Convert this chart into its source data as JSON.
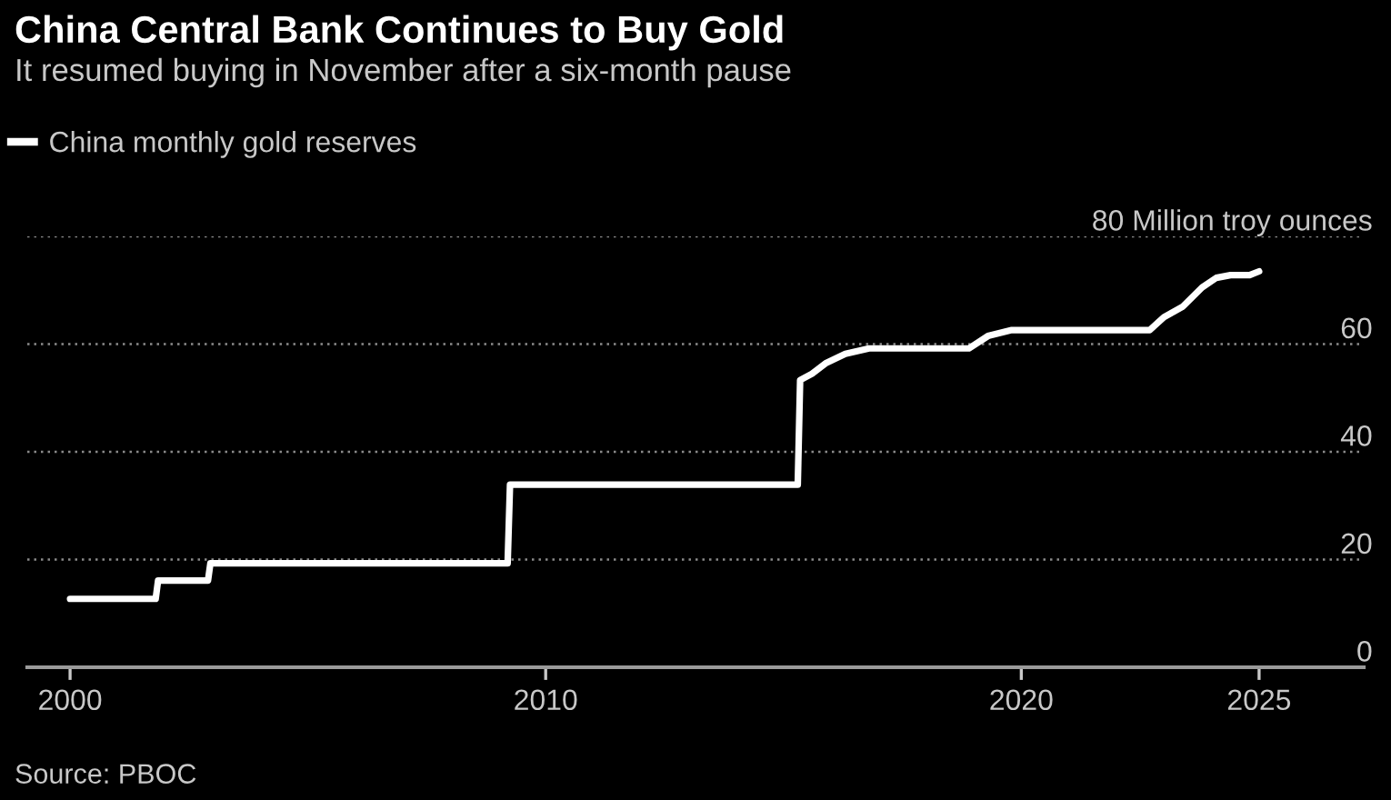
{
  "chart_data": {
    "type": "line",
    "title": "China Central Bank Continues to Buy Gold",
    "subtitle": "It resumed buying in November after a six-month pause",
    "series": [
      {
        "name": "China monthly gold reserves",
        "color": "#ffffff",
        "x": [
          2000.0,
          2001.8,
          2001.85,
          2002.9,
          2002.95,
          2009.2,
          2009.25,
          2015.3,
          2015.35,
          2015.6,
          2015.9,
          2016.3,
          2016.8,
          2018.9,
          2019.3,
          2019.8,
          2022.7,
          2023.0,
          2023.4,
          2023.8,
          2024.1,
          2024.4,
          2024.8,
          2025.0
        ],
        "values": [
          12.7,
          12.7,
          16.1,
          16.1,
          19.3,
          19.3,
          33.9,
          33.9,
          53.3,
          54.5,
          56.5,
          58.2,
          59.2,
          59.2,
          61.5,
          62.6,
          62.6,
          65.0,
          67.0,
          70.5,
          72.3,
          72.8,
          72.8,
          73.5
        ]
      }
    ],
    "xlim": [
      1999.1,
      2027.2
    ],
    "xticks": [
      2000,
      2010,
      2020,
      2025
    ],
    "ylim": [
      0,
      80
    ],
    "yticks": [
      0,
      20,
      40,
      60,
      {
        "value": 80,
        "label": "80 Million troy ounces"
      }
    ],
    "grid": "y",
    "legend": "top left",
    "line_style": "solid",
    "marker": "none",
    "annotations": [
      "Source: PBOC"
    ]
  }
}
